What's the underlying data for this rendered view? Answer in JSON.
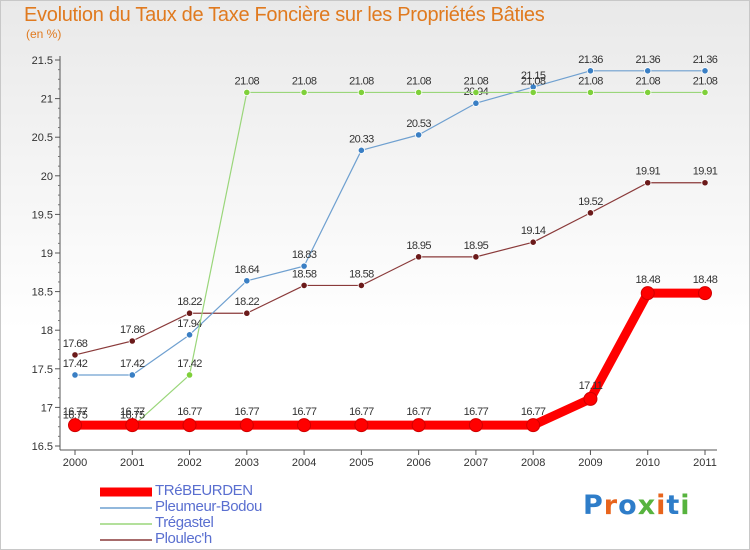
{
  "title": "Evolution du Taux de Taxe Foncière sur les Propriétés Bâties",
  "unit_label": "(en %)",
  "logo": {
    "text": "Proxiti",
    "colors": [
      "#2e7dc9",
      "#e8641c",
      "#2e7dc9",
      "#57b33e",
      "#e8641c",
      "#2e7dc9",
      "#57b33e"
    ]
  },
  "chart_data": {
    "type": "line",
    "x": [
      "2000",
      "2001",
      "2002",
      "2003",
      "2004",
      "2005",
      "2006",
      "2007",
      "2008",
      "2009",
      "2010",
      "2011"
    ],
    "ylim": [
      16.5,
      21.5
    ],
    "yticks": [
      "16.5",
      "17",
      "17.5",
      "18",
      "18.5",
      "19",
      "19.5",
      "20",
      "20.5",
      "21",
      "21.5"
    ],
    "grid": false,
    "legend_position": "bottom-left",
    "series": [
      {
        "name": "TRéBEURDEN",
        "color": "#ff0000",
        "thick": true,
        "values": [
          16.77,
          16.77,
          16.77,
          16.77,
          16.77,
          16.77,
          16.77,
          16.77,
          16.77,
          17.11,
          18.48,
          18.48
        ],
        "labels": [
          "16.77",
          "16.77",
          "16.77",
          "16.77",
          "16.77",
          "16.77",
          "16.77",
          "16.77",
          "16.77",
          "17.11",
          "18.48",
          "18.48"
        ]
      },
      {
        "name": "Pleumeur-Bodou",
        "color": "#6fa0d0",
        "marker": "#3a7fc4",
        "values": [
          17.42,
          17.42,
          17.94,
          18.64,
          18.83,
          20.33,
          20.53,
          20.94,
          21.15,
          21.36,
          21.36,
          21.36
        ],
        "labels": [
          "17.42",
          "17.42",
          "17.94",
          "18.64",
          "18.83",
          "20.33",
          "20.53",
          "20.94",
          "21.15",
          "21.36",
          "21.36",
          "21.36"
        ]
      },
      {
        "name": "Trégastel",
        "color": "#9ad67a",
        "marker": "#7fd03a",
        "values": [
          16.75,
          16.75,
          17.42,
          21.08,
          21.08,
          21.08,
          21.08,
          21.08,
          21.08,
          21.08,
          21.08,
          21.08
        ],
        "labels": [
          "16.75",
          "16.75",
          "17.42",
          "21.08",
          "21.08",
          "21.08",
          "21.08",
          "21.08",
          "21.08",
          "21.08",
          "21.08",
          "21.08"
        ]
      },
      {
        "name": "Ploulec'h",
        "color": "#8a3a3a",
        "marker": "#6b1a1a",
        "values": [
          17.68,
          17.86,
          18.22,
          18.22,
          18.58,
          18.58,
          18.95,
          18.95,
          19.14,
          19.52,
          19.91,
          19.91
        ],
        "labels": [
          "17.68",
          "17.86",
          "18.22",
          "18.22",
          "18.58",
          "18.58",
          "18.95",
          "18.95",
          "19.14",
          "19.52",
          "19.91",
          "19.91"
        ]
      }
    ]
  }
}
